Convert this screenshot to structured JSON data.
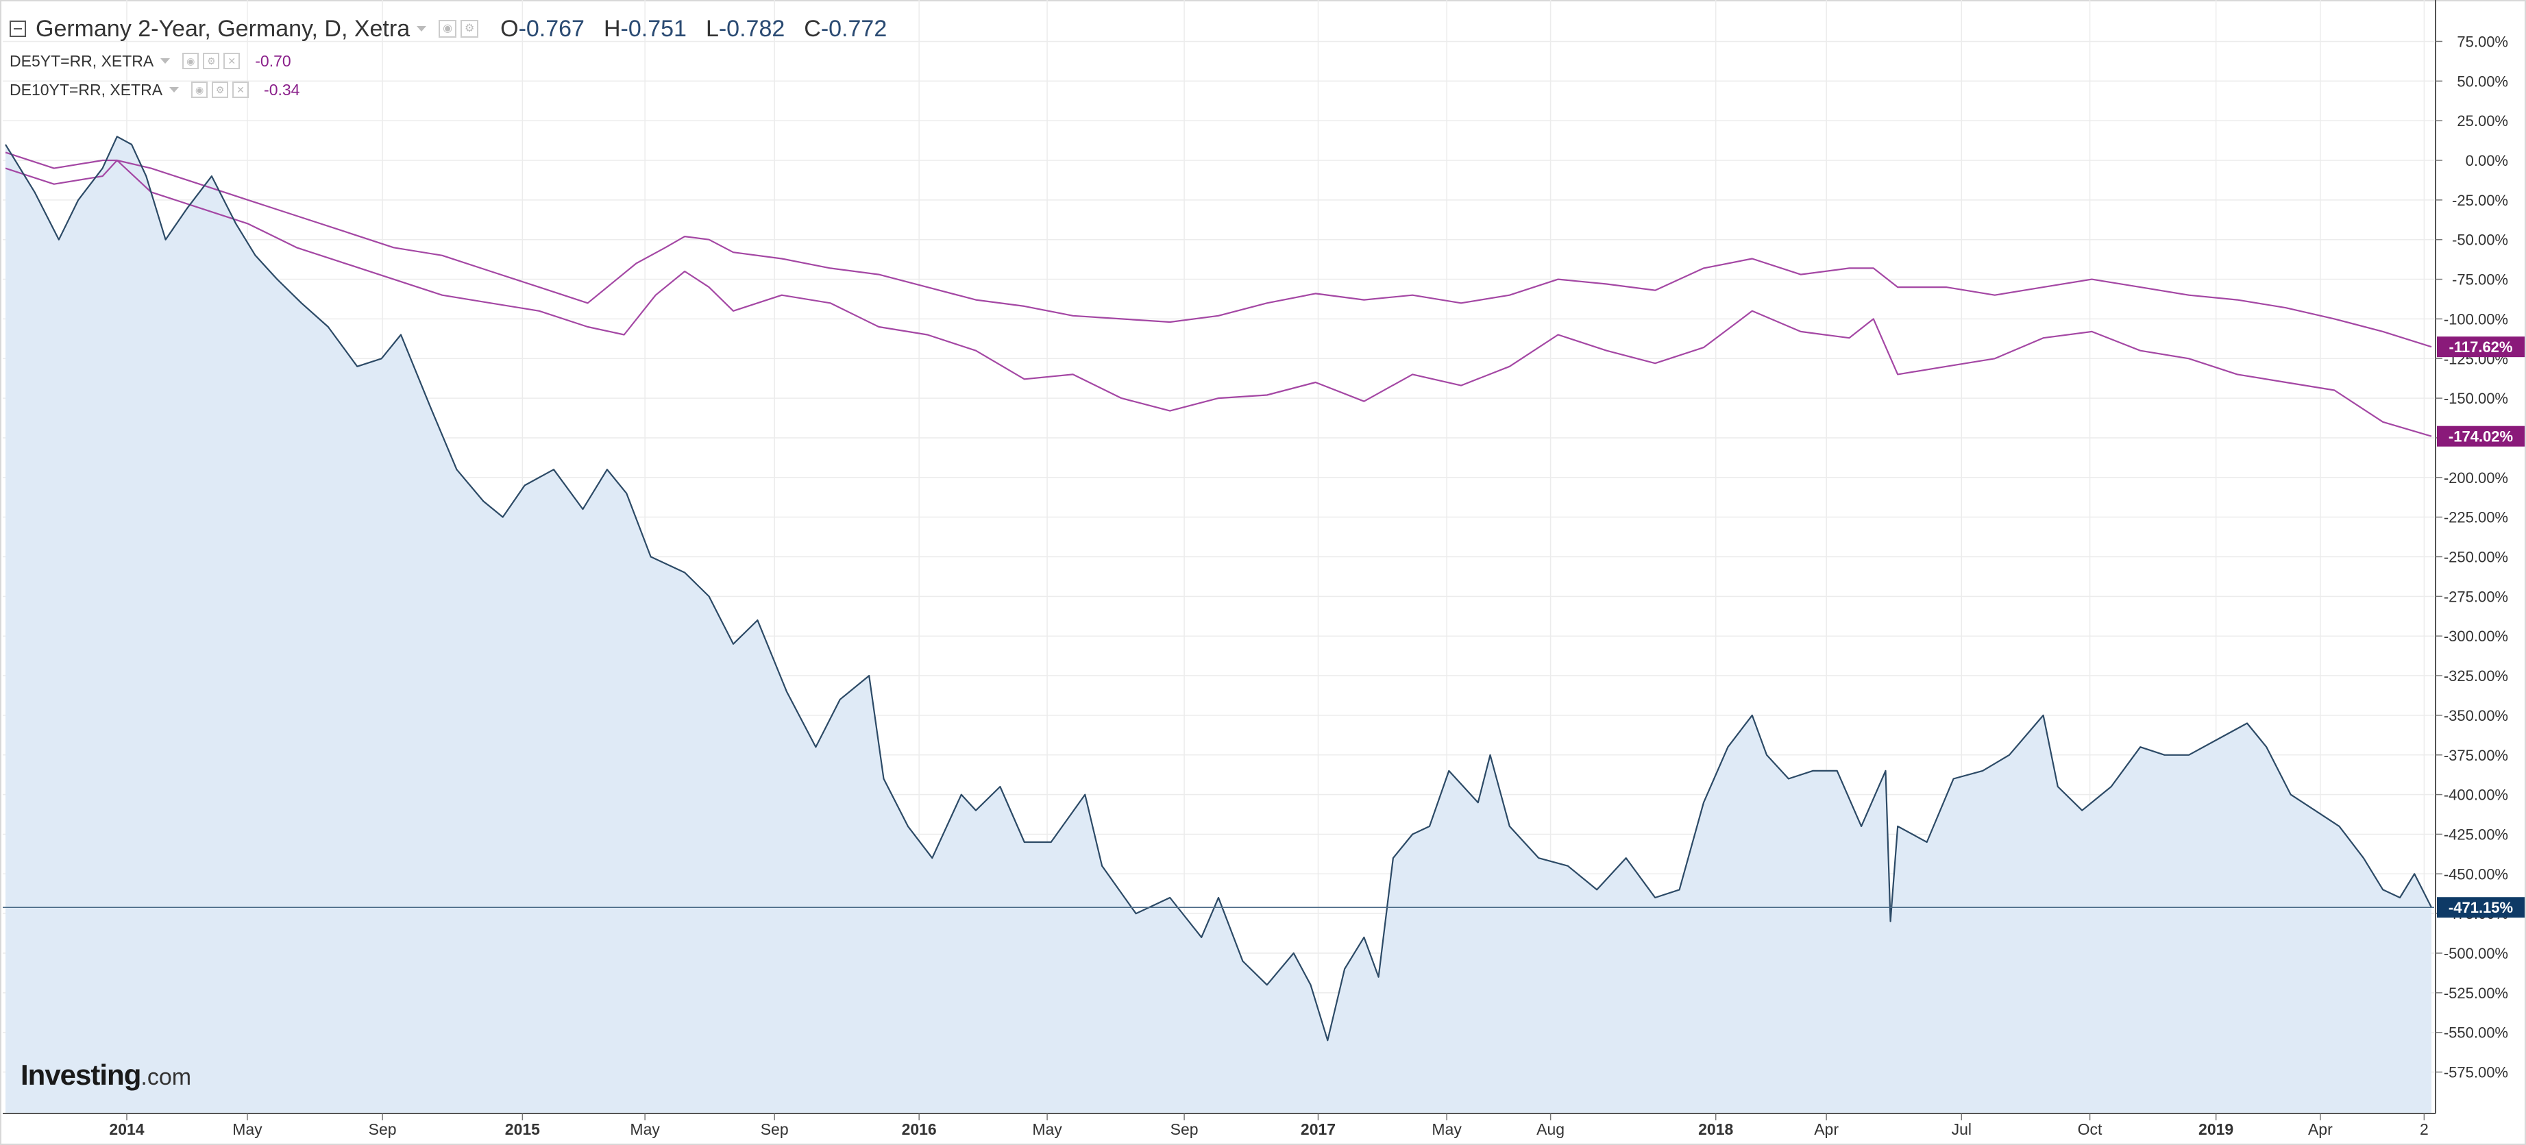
{
  "legend": {
    "main": {
      "title": "Germany 2-Year, Germany, D, Xetra",
      "open_label": "O",
      "open": "-0.767",
      "high_label": "H",
      "high": "-0.751",
      "low_label": "L",
      "low": "-0.782",
      "close_label": "C",
      "close": "-0.772"
    },
    "overlays": [
      {
        "label": "DE5YT=RR, XETRA",
        "value": "-0.70"
      },
      {
        "label": "DE10YT=RR, XETRA",
        "value": "-0.34"
      }
    ]
  },
  "logo": {
    "brand": "Investing",
    "suffix": ".com"
  },
  "colors": {
    "main_line": "#2c4a66",
    "main_fill": "#dfeaf6",
    "overlay_line": "#a447a4",
    "main_badge": "#0e3a66",
    "overlay_badge": "#8a1a7a",
    "grid": "#ececec",
    "axis_text": "#333333"
  },
  "chart_data": {
    "type": "line",
    "title": "Germany 2-Year, Germany, D, Xetra",
    "ylabel": "",
    "xlabel": "",
    "y_unit": "%",
    "ylim": [
      -588,
      80
    ],
    "y_ticks": [
      75,
      50,
      25,
      0,
      -25,
      -50,
      -75,
      -100,
      -125,
      -150,
      -175,
      -200,
      -225,
      -250,
      -275,
      -300,
      -325,
      -350,
      -375,
      -400,
      -425,
      -450,
      -475,
      -500,
      -525,
      -550,
      -575
    ],
    "x_ticks": [
      {
        "label": "2014",
        "t": 0.05,
        "bold": true
      },
      {
        "label": "May",
        "t": 0.0997
      },
      {
        "label": "Sep",
        "t": 0.1554
      },
      {
        "label": "2015",
        "t": 0.2131,
        "bold": true
      },
      {
        "label": "May",
        "t": 0.2636
      },
      {
        "label": "Sep",
        "t": 0.317
      },
      {
        "label": "2016",
        "t": 0.3766,
        "bold": true
      },
      {
        "label": "May",
        "t": 0.4294
      },
      {
        "label": "Sep",
        "t": 0.4859
      },
      {
        "label": "2017",
        "t": 0.5411,
        "bold": true
      },
      {
        "label": "May",
        "t": 0.5941
      },
      {
        "label": "Aug",
        "t": 0.6369
      },
      {
        "label": "2018",
        "t": 0.705,
        "bold": true
      },
      {
        "label": "Apr",
        "t": 0.7506
      },
      {
        "label": "Jul",
        "t": 0.8063
      },
      {
        "label": "Oct",
        "t": 0.8592
      },
      {
        "label": "2019",
        "t": 0.9112,
        "bold": true
      },
      {
        "label": "Apr",
        "t": 0.9542
      },
      {
        "label": "2",
        "t": 0.997
      }
    ],
    "last_values": [
      {
        "series": "DE5YT=RR, XETRA",
        "label": "-117.62%",
        "value": -117.62
      },
      {
        "series": "DE10YT=RR, XETRA",
        "label": "-174.02%",
        "value": -174.02
      },
      {
        "series": "Germany 2-Year, Germany, D, Xetra",
        "label": "-471.15%",
        "value": -471.15
      }
    ],
    "series": [
      {
        "name": "Germany 2-Year, Germany, D, Xetra",
        "x": [
          0,
          0.012,
          0.022,
          0.03,
          0.04,
          0.046,
          0.052,
          0.058,
          0.066,
          0.075,
          0.085,
          0.095,
          0.103,
          0.112,
          0.122,
          0.133,
          0.145,
          0.155,
          0.163,
          0.175,
          0.186,
          0.197,
          0.205,
          0.214,
          0.226,
          0.238,
          0.248,
          0.256,
          0.266,
          0.28,
          0.29,
          0.3,
          0.31,
          0.322,
          0.334,
          0.344,
          0.356,
          0.362,
          0.372,
          0.382,
          0.394,
          0.4,
          0.41,
          0.42,
          0.431,
          0.445,
          0.452,
          0.466,
          0.48,
          0.493,
          0.5,
          0.51,
          0.52,
          0.531,
          0.538,
          0.545,
          0.552,
          0.56,
          0.566,
          0.572,
          0.58,
          0.587,
          0.595,
          0.607,
          0.612,
          0.62,
          0.632,
          0.644,
          0.656,
          0.668,
          0.68,
          0.69,
          0.7,
          0.71,
          0.72,
          0.726,
          0.735,
          0.745,
          0.755,
          0.765,
          0.775,
          0.777,
          0.78,
          0.792,
          0.803,
          0.815,
          0.826,
          0.84,
          0.846,
          0.856,
          0.868,
          0.88,
          0.89,
          0.9,
          0.912,
          0.924,
          0.932,
          0.942,
          0.952,
          0.962,
          0.972,
          0.98,
          0.987,
          0.993,
          1.0
        ],
        "values": [
          10,
          -20,
          -50,
          -25,
          -5,
          15,
          10,
          -10,
          -50,
          -30,
          -10,
          -40,
          -60,
          -75,
          -90,
          -105,
          -130,
          -125,
          -110,
          -155,
          -195,
          -215,
          -225,
          -205,
          -195,
          -220,
          -195,
          -210,
          -250,
          -260,
          -275,
          -305,
          -290,
          -335,
          -370,
          -340,
          -325,
          -390,
          -420,
          -440,
          -400,
          -410,
          -395,
          -430,
          -430,
          -400,
          -445,
          -475,
          -465,
          -490,
          -465,
          -505,
          -520,
          -500,
          -520,
          -555,
          -510,
          -490,
          -515,
          -440,
          -425,
          -420,
          -385,
          -405,
          -375,
          -420,
          -440,
          -445,
          -460,
          -440,
          -465,
          -460,
          -405,
          -370,
          -350,
          -375,
          -390,
          -385,
          -385,
          -420,
          -385,
          -480,
          -420,
          -430,
          -390,
          -385,
          -375,
          -350,
          -395,
          -410,
          -395,
          -370,
          -375,
          -375,
          -365,
          -355,
          -370,
          -400,
          -410,
          -420,
          -440,
          -460,
          -465,
          -450,
          -471.15
        ]
      },
      {
        "name": "DE5YT=RR, XETRA",
        "x": [
          0,
          0.02,
          0.04,
          0.046,
          0.06,
          0.08,
          0.1,
          0.12,
          0.14,
          0.16,
          0.18,
          0.2,
          0.22,
          0.24,
          0.26,
          0.272,
          0.28,
          0.29,
          0.3,
          0.32,
          0.34,
          0.36,
          0.38,
          0.4,
          0.42,
          0.44,
          0.46,
          0.48,
          0.5,
          0.52,
          0.54,
          0.56,
          0.58,
          0.6,
          0.62,
          0.64,
          0.66,
          0.68,
          0.7,
          0.72,
          0.74,
          0.76,
          0.77,
          0.78,
          0.8,
          0.82,
          0.84,
          0.86,
          0.88,
          0.9,
          0.92,
          0.94,
          0.96,
          0.98,
          1.0
        ],
        "values": [
          5,
          -5,
          0,
          0,
          -5,
          -15,
          -25,
          -35,
          -45,
          -55,
          -60,
          -70,
          -80,
          -90,
          -65,
          -55,
          -48,
          -50,
          -58,
          -62,
          -68,
          -72,
          -80,
          -88,
          -92,
          -98,
          -100,
          -102,
          -98,
          -90,
          -84,
          -88,
          -85,
          -90,
          -85,
          -75,
          -78,
          -82,
          -68,
          -62,
          -72,
          -68,
          -68,
          -80,
          -80,
          -85,
          -80,
          -75,
          -80,
          -85,
          -88,
          -93,
          -100,
          -108,
          -117.62
        ]
      },
      {
        "name": "DE10YT=RR, XETRA",
        "x": [
          0,
          0.02,
          0.04,
          0.046,
          0.06,
          0.08,
          0.1,
          0.12,
          0.14,
          0.16,
          0.18,
          0.2,
          0.22,
          0.24,
          0.255,
          0.268,
          0.28,
          0.29,
          0.3,
          0.32,
          0.34,
          0.36,
          0.38,
          0.4,
          0.42,
          0.44,
          0.46,
          0.48,
          0.5,
          0.52,
          0.54,
          0.56,
          0.58,
          0.6,
          0.62,
          0.64,
          0.66,
          0.68,
          0.7,
          0.72,
          0.74,
          0.76,
          0.77,
          0.78,
          0.8,
          0.82,
          0.84,
          0.86,
          0.88,
          0.9,
          0.92,
          0.94,
          0.96,
          0.98,
          1.0
        ],
        "values": [
          -5,
          -15,
          -10,
          0,
          -20,
          -30,
          -40,
          -55,
          -65,
          -75,
          -85,
          -90,
          -95,
          -105,
          -110,
          -85,
          -70,
          -80,
          -95,
          -85,
          -90,
          -105,
          -110,
          -120,
          -138,
          -135,
          -150,
          -158,
          -150,
          -148,
          -140,
          -152,
          -135,
          -142,
          -130,
          -110,
          -120,
          -128,
          -118,
          -95,
          -108,
          -112,
          -100,
          -135,
          -130,
          -125,
          -112,
          -108,
          -120,
          -125,
          -135,
          -140,
          -145,
          -165,
          -174.02
        ]
      }
    ]
  }
}
